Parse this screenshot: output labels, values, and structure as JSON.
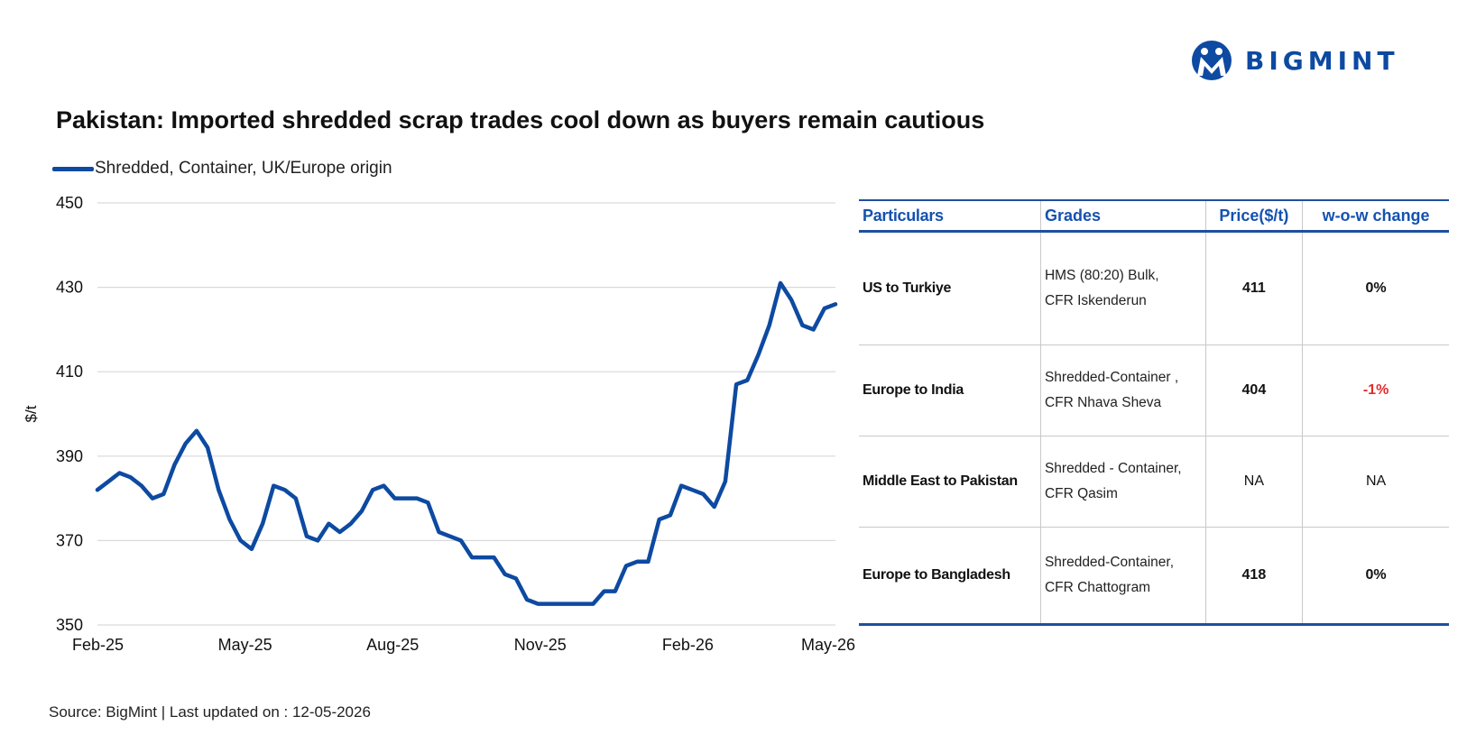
{
  "brand": {
    "name": "BIGMINT",
    "logo_icon": "bigmint-logo-icon",
    "color": "#0d4aa1"
  },
  "title": "Pakistan: Imported shredded scrap trades cool down as buyers remain cautious",
  "source": "Source: BigMint | Last updated on : 12-05-2026",
  "chart_data": {
    "type": "line",
    "title": "Pakistan: Imported shredded scrap trades cool down as buyers remain cautious",
    "xlabel": "",
    "ylabel": "$/t",
    "ylim": [
      350,
      450
    ],
    "yticks": [
      350,
      370,
      390,
      410,
      430,
      450
    ],
    "xticks": [
      "Feb-25",
      "May-25",
      "Aug-25",
      "Nov-25",
      "Feb-26",
      "May-26"
    ],
    "grid": true,
    "legend_position": "top-left",
    "line_color": "#0d4aa1",
    "series": [
      {
        "name": "Shredded, Container, UK/Europe origin",
        "values": [
          382,
          384,
          386,
          385,
          383,
          380,
          381,
          388,
          393,
          396,
          392,
          382,
          375,
          370,
          368,
          374,
          383,
          382,
          380,
          371,
          370,
          374,
          372,
          374,
          377,
          382,
          383,
          380,
          380,
          380,
          379,
          372,
          371,
          370,
          366,
          366,
          366,
          362,
          361,
          356,
          355,
          355,
          355,
          355,
          355,
          355,
          358,
          358,
          364,
          365,
          365,
          375,
          376,
          383,
          382,
          381,
          378,
          384,
          407,
          408,
          414,
          421,
          431,
          427,
          421,
          420,
          425,
          426
        ]
      }
    ]
  },
  "table": {
    "headers": {
      "particulars": "Particulars",
      "grades": "Grades",
      "price": "Price($/t)",
      "wow": "w-o-w change"
    },
    "rows": [
      {
        "particulars": "US to Turkiye",
        "grade_line1": "HMS (80:20) Bulk,",
        "grade_line2": "CFR Iskenderun",
        "price": "411",
        "wow": "0%"
      },
      {
        "particulars": "Europe to India",
        "grade_line1": "Shredded-Container ,",
        "grade_line2": "CFR Nhava Sheva",
        "price": "404",
        "wow": "-1%"
      },
      {
        "particulars": "Middle East to Pakistan",
        "grade_line1": "Shredded - Container,",
        "grade_line2": "CFR Qasim",
        "price": "NA",
        "wow": "NA"
      },
      {
        "particulars": "Europe to Bangladesh",
        "grade_line1": "Shredded-Container,",
        "grade_line2": "CFR Chattogram",
        "price": "418",
        "wow": "0%"
      }
    ],
    "negative_color": "#e52b2b",
    "header_color": "#1552b0"
  }
}
